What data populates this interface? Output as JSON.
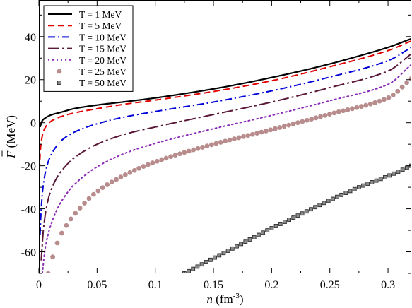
{
  "chart_data": {
    "type": "line",
    "xlabel": "n (fm⁻³)",
    "ylabel": "F̅ (MeV)",
    "xlim": [
      0,
      0.32
    ],
    "ylim": [
      -70,
      57
    ],
    "xticks": [
      0,
      0.05,
      0.1,
      0.15,
      0.2,
      0.25,
      0.3
    ],
    "xtick_labels": [
      "0",
      "0.05",
      "0.1",
      "0.15",
      "0.2",
      "0.25",
      "0.3"
    ],
    "yticks": [
      -60,
      -40,
      -20,
      0,
      20,
      40
    ],
    "ytick_labels": [
      "-60",
      "-40",
      "-20",
      "0",
      "20",
      "40"
    ],
    "legend_position": "top-left",
    "grid": false,
    "series": [
      {
        "name": "T = 1 MeV",
        "T": 1,
        "style": "solid",
        "color": "#000000",
        "x": [
          0.001,
          0.003,
          0.005,
          0.01,
          0.02,
          0.03,
          0.05,
          0.075,
          0.1,
          0.125,
          0.15,
          0.175,
          0.2,
          0.225,
          0.25,
          0.275,
          0.3,
          0.32
        ],
        "y": [
          -2,
          1,
          2,
          3.5,
          5,
          6.5,
          8.2,
          9.8,
          11.5,
          13.5,
          15.7,
          18.2,
          21,
          24,
          27.3,
          31,
          35,
          39
        ]
      },
      {
        "name": "T = 5 MeV",
        "T": 5,
        "style": "dashed",
        "color": "#e00000",
        "x": [
          0.0005,
          0.001,
          0.002,
          0.004,
          0.007,
          0.01,
          0.015,
          0.02,
          0.03,
          0.05,
          0.075,
          0.1,
          0.15,
          0.2,
          0.25,
          0.3,
          0.32
        ],
        "y": [
          -22,
          -15,
          -9,
          -4,
          -1,
          0.5,
          2,
          3,
          4.5,
          6.5,
          8.7,
          10.5,
          14.5,
          19.5,
          26,
          33.5,
          38
        ]
      },
      {
        "name": "T = 10 MeV",
        "T": 10,
        "style": "dashdot",
        "color": "#0000d8",
        "x": [
          0.001,
          0.002,
          0.004,
          0.007,
          0.01,
          0.015,
          0.02,
          0.03,
          0.05,
          0.075,
          0.1,
          0.15,
          0.2,
          0.25,
          0.3,
          0.32
        ],
        "y": [
          -52,
          -40,
          -28,
          -20,
          -15.5,
          -11,
          -8,
          -4.5,
          -0.5,
          2.8,
          5.2,
          9.6,
          14.8,
          21.2,
          28.8,
          35
        ]
      },
      {
        "name": "T = 15 MeV",
        "T": 15,
        "style": "dashdot-long",
        "color": "#5a1838",
        "x": [
          0.002,
          0.004,
          0.007,
          0.01,
          0.015,
          0.02,
          0.03,
          0.05,
          0.075,
          0.1,
          0.15,
          0.2,
          0.25,
          0.3,
          0.32
        ],
        "y": [
          -64,
          -49,
          -38,
          -32,
          -26,
          -22,
          -16.5,
          -10,
          -5.2,
          -2,
          3.8,
          9.6,
          16.3,
          24,
          32
        ]
      },
      {
        "name": "T = 20 MeV",
        "T": 20,
        "style": "dotted",
        "color": "#8a2ab8",
        "x": [
          0.003,
          0.005,
          0.007,
          0.01,
          0.015,
          0.02,
          0.03,
          0.05,
          0.075,
          0.1,
          0.15,
          0.2,
          0.25,
          0.3,
          0.32
        ],
        "y": [
          -70,
          -60,
          -54,
          -48,
          -41,
          -36,
          -29,
          -20.5,
          -14,
          -9.6,
          -2.8,
          3.4,
          10.2,
          17.8,
          27
        ]
      },
      {
        "name": "T = 25 MeV",
        "T": 25,
        "style": "circles",
        "color": "#b88c8c",
        "x": [
          0.008,
          0.01,
          0.015,
          0.02,
          0.03,
          0.05,
          0.075,
          0.1,
          0.15,
          0.2,
          0.25,
          0.3,
          0.32
        ],
        "y": [
          -70,
          -66,
          -57,
          -51,
          -43,
          -32,
          -24,
          -18.2,
          -10,
          -3.2,
          4,
          11.5,
          20.5
        ]
      },
      {
        "name": "T = 50 MeV",
        "T": 50,
        "style": "squares",
        "color": "#555555",
        "x": [
          0.125,
          0.15,
          0.175,
          0.2,
          0.225,
          0.25,
          0.275,
          0.3,
          0.32
        ],
        "y": [
          -70,
          -63,
          -56,
          -49,
          -42.5,
          -36,
          -30,
          -24.8,
          -20
        ]
      }
    ]
  }
}
